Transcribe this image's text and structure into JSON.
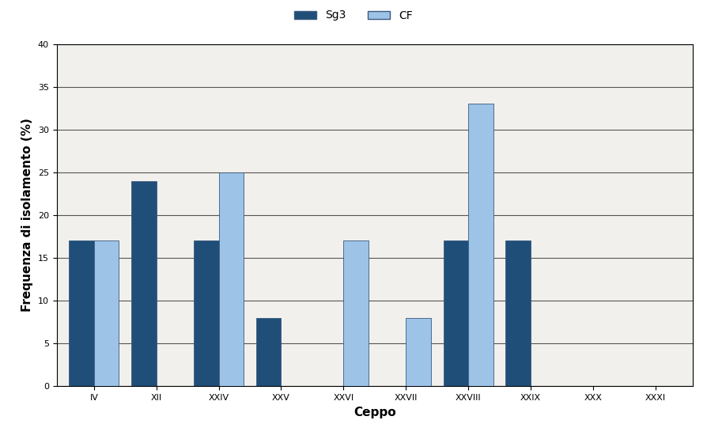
{
  "chart_data": {
    "type": "bar",
    "x_label": "Ceppo",
    "y_label": "Frequenza di isolamento (%)",
    "categories": [
      "IV",
      "XII",
      "XXIV",
      "XXV",
      "XXVI",
      "XXVII",
      "XXVIII",
      "XXIX",
      "XXX",
      "XXXI"
    ],
    "series": [
      {
        "name": "Sg3",
        "color": "#1f4e79",
        "values": [
          17,
          24,
          17,
          8,
          0,
          0,
          17,
          17,
          0,
          0
        ]
      },
      {
        "name": "CF",
        "color": "#9dc3e6",
        "values": [
          17,
          0,
          25,
          0,
          17,
          8,
          33,
          0,
          0,
          0
        ]
      }
    ],
    "ylim": [
      0,
      40
    ],
    "yticks": [
      0,
      5,
      10,
      15,
      20,
      25,
      30,
      35,
      40
    ],
    "grid": true,
    "legend": "upper center"
  }
}
